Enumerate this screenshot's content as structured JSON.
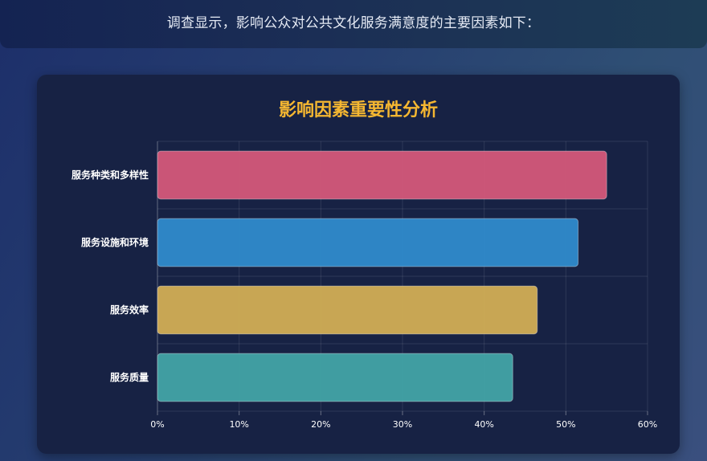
{
  "intro": "调查显示，影响公众对公共文化服务满意度的主要因素如下：",
  "chart_data": {
    "type": "bar",
    "orientation": "horizontal",
    "title": "影响因素重要性分析",
    "categories": [
      "服务种类和多样性",
      "服务设施和环境",
      "服务效率",
      "服务质量"
    ],
    "values": [
      55,
      51.5,
      46.5,
      43.5
    ],
    "colors": [
      "#d4587a",
      "#2f8bcc",
      "#d2ae55",
      "#42a4a6"
    ],
    "xlim": [
      0,
      60
    ],
    "x_ticks": [
      "0%",
      "10%",
      "20%",
      "30%",
      "40%",
      "50%",
      "60%"
    ],
    "grid": true,
    "legend": "none"
  }
}
